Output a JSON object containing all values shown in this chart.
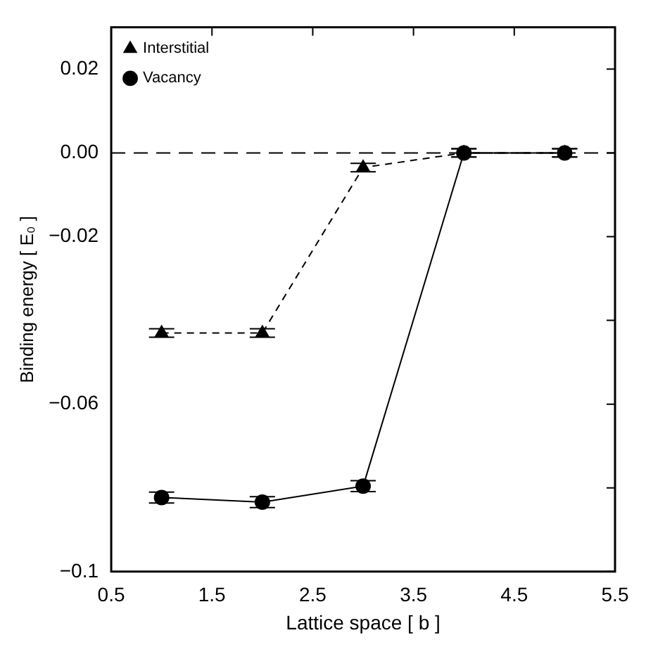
{
  "chart_data": {
    "type": "line",
    "xlabel": "Lattice space [ b ]",
    "ylabel": "Binding energy [ E₀ ]",
    "x": [
      1,
      2,
      3,
      4,
      5
    ],
    "series": [
      {
        "name": "Interstitial",
        "color": "#000000",
        "values": [
          -0.043,
          -0.043,
          -0.0035,
          0,
          0
        ],
        "errors": [
          0.001,
          0.001,
          0.001,
          0.001,
          0.001
        ],
        "marker": "triangle",
        "line_style": "dashed"
      },
      {
        "name": "Vacancy",
        "color": "#000000",
        "values": [
          -0.0823,
          -0.0834,
          -0.0796,
          0,
          0
        ],
        "errors": [
          0.0013,
          0.0013,
          0.0013,
          0.001,
          0.001
        ],
        "marker": "circle",
        "line_style": "solid"
      }
    ],
    "xlim": [
      0.5,
      5.5
    ],
    "xticks": [
      0.5,
      1.5,
      2.5,
      3.5,
      4.5,
      5.5
    ],
    "ylim": [
      -0.1,
      0.03
    ],
    "yticks": [
      {
        "value": -0.1,
        "label": "−0.1"
      },
      {
        "value": -0.08,
        "label": null
      },
      {
        "value": -0.06,
        "label": "−0.06"
      },
      {
        "value": -0.04,
        "label": null
      },
      {
        "value": -0.02,
        "label": "−0.02"
      },
      {
        "value": 0,
        "label": "0.00"
      },
      {
        "value": 0.02,
        "label": "0.02"
      }
    ],
    "ref_lines": [
      {
        "axis": "y",
        "value": 0,
        "line_style": "dashed"
      }
    ],
    "grid": false,
    "legend": "top left"
  }
}
